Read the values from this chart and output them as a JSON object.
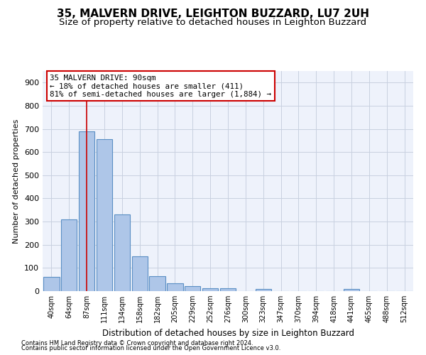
{
  "title": "35, MALVERN DRIVE, LEIGHTON BUZZARD, LU7 2UH",
  "subtitle": "Size of property relative to detached houses in Leighton Buzzard",
  "xlabel": "Distribution of detached houses by size in Leighton Buzzard",
  "ylabel": "Number of detached properties",
  "footer1": "Contains HM Land Registry data © Crown copyright and database right 2024.",
  "footer2": "Contains public sector information licensed under the Open Government Licence v3.0.",
  "bar_labels": [
    "40sqm",
    "64sqm",
    "87sqm",
    "111sqm",
    "134sqm",
    "158sqm",
    "182sqm",
    "205sqm",
    "229sqm",
    "252sqm",
    "276sqm",
    "300sqm",
    "323sqm",
    "347sqm",
    "370sqm",
    "394sqm",
    "418sqm",
    "441sqm",
    "465sqm",
    "488sqm",
    "512sqm"
  ],
  "bar_values": [
    62,
    310,
    688,
    655,
    330,
    150,
    65,
    33,
    20,
    12,
    12,
    0,
    10,
    0,
    0,
    0,
    0,
    8,
    0,
    0,
    0
  ],
  "bar_color": "#aec6e8",
  "bar_edge_color": "#5a8fc4",
  "highlight_bar_index": 2,
  "annotation_line1": "35 MALVERN DRIVE: 90sqm",
  "annotation_line2": "← 18% of detached houses are smaller (411)",
  "annotation_line3": "81% of semi-detached houses are larger (1,884) →",
  "annotation_box_color": "#cc0000",
  "vline_color": "#cc0000",
  "ylim": [
    0,
    950
  ],
  "yticks": [
    0,
    100,
    200,
    300,
    400,
    500,
    600,
    700,
    800,
    900
  ],
  "grid_color": "#c8d0e0",
  "bg_color": "#eef2fb",
  "title_fontsize": 11,
  "subtitle_fontsize": 9.5
}
